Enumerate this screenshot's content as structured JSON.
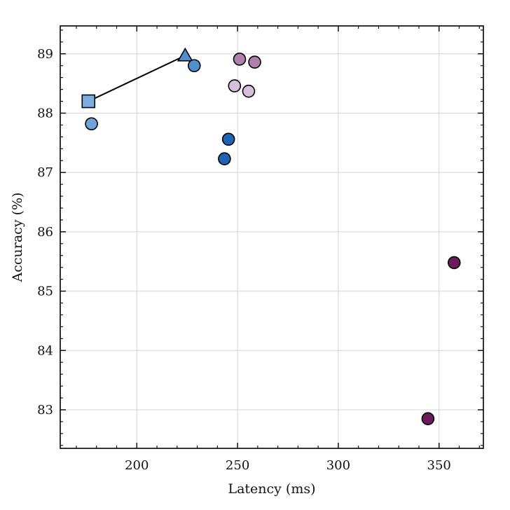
{
  "chart_data": {
    "type": "scatter",
    "title": "",
    "xlabel": "Latency (ms)",
    "ylabel": "Accuracy (%)",
    "xlim": [
      162,
      372
    ],
    "ylim": [
      82.35,
      89.47
    ],
    "xticks": [
      200,
      250,
      300,
      350
    ],
    "yticks": [
      83,
      84,
      85,
      86,
      87,
      88,
      89
    ],
    "grid": true,
    "legend": "none",
    "points": [
      {
        "x": 177.5,
        "y": 87.82,
        "color": "#6fa6d8",
        "marker": "circle"
      },
      {
        "x": 228.5,
        "y": 88.8,
        "color": "#4f8fcd",
        "marker": "circle"
      },
      {
        "x": 243.5,
        "y": 87.23,
        "color": "#1f63b5",
        "marker": "circle"
      },
      {
        "x": 245.5,
        "y": 87.56,
        "color": "#1f63b5",
        "marker": "circle"
      },
      {
        "x": 248.5,
        "y": 88.46,
        "color": "#d6bfd8",
        "marker": "circle"
      },
      {
        "x": 251.0,
        "y": 88.91,
        "color": "#b07fab",
        "marker": "circle"
      },
      {
        "x": 255.5,
        "y": 88.37,
        "color": "#d6bfd8",
        "marker": "circle"
      },
      {
        "x": 258.5,
        "y": 88.86,
        "color": "#b07fab",
        "marker": "circle"
      },
      {
        "x": 344.5,
        "y": 82.85,
        "color": "#6b1a5c",
        "marker": "circle"
      },
      {
        "x": 357.5,
        "y": 85.48,
        "color": "#6b1a5c",
        "marker": "circle"
      }
    ],
    "line_series": {
      "points": [
        {
          "x": 176.0,
          "y": 88.2,
          "color": "#7aaee0",
          "marker": "square"
        },
        {
          "x": 224.0,
          "y": 88.97,
          "color": "#4f8fcd",
          "marker": "triangle"
        }
      ],
      "line_color": "#000000"
    }
  }
}
